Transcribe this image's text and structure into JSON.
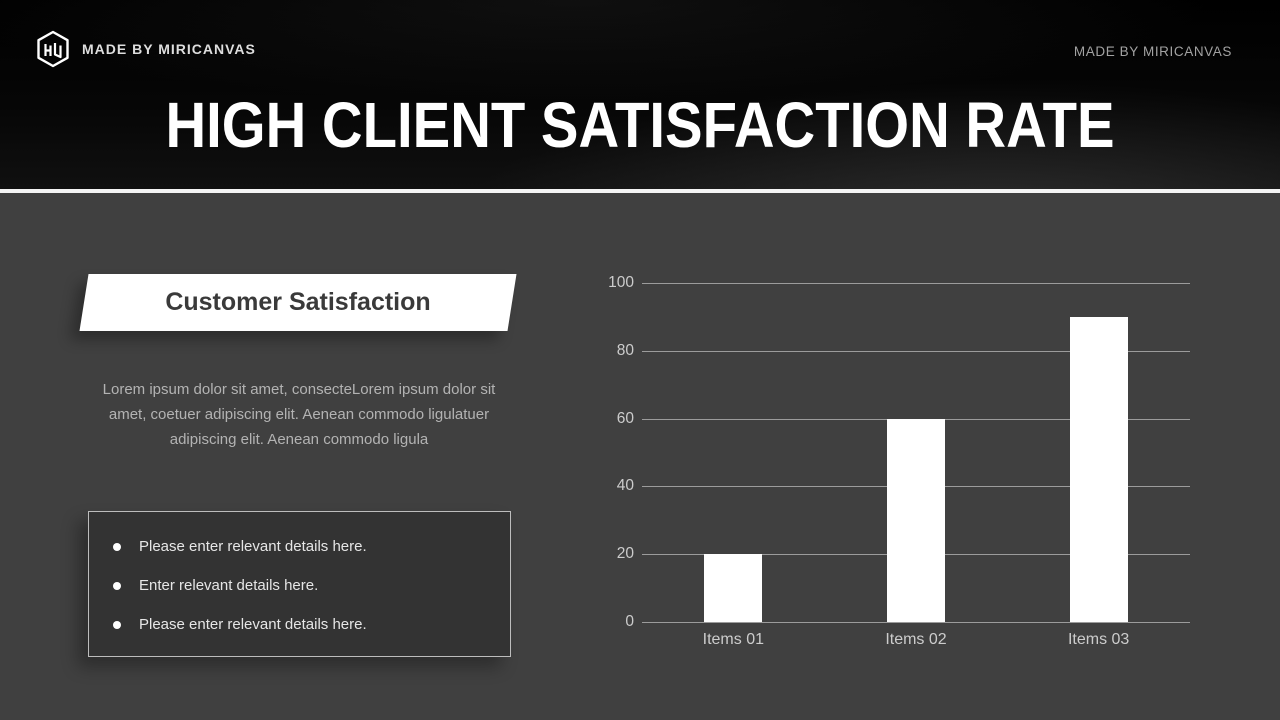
{
  "header": {
    "logo_label": "MADE BY MIRICANVAS",
    "right_label": "MADE BY MIRICANVAS",
    "title": "HIGH CLIENT SATISFACTION RATE"
  },
  "left_panel": {
    "banner_title": "Customer Satisfaction",
    "paragraph": "Lorem ipsum dolor sit amet, consecteLorem ipsum dolor sit amet, coetuer adipiscing elit. Aenean commodo ligulatuer adipiscing elit. Aenean commodo ligula",
    "bullets": [
      "Please enter relevant details here.",
      "Enter relevant details here.",
      "Please enter relevant details here."
    ]
  },
  "chart_data": {
    "type": "bar",
    "categories": [
      "Items 01",
      "Items 02",
      "Items 03"
    ],
    "values": [
      20,
      60,
      90
    ],
    "title": "",
    "xlabel": "",
    "ylabel": "",
    "ylim": [
      0,
      100
    ],
    "yticks": [
      0,
      20,
      40,
      60,
      80,
      100
    ],
    "grid": true,
    "legend": false,
    "bar_color": "#ffffff",
    "gridline_color": "#9c9c9c",
    "tick_label_color": "#cccccc"
  },
  "colors": {
    "body_bg": "#404040",
    "header_bg": "#050505",
    "divider": "#f4f4f4",
    "banner_bg": "#ffffff",
    "banner_text": "#3a3a3a",
    "bullet_box_bg": "#333333",
    "bullet_box_border": "#bdbdbd"
  }
}
